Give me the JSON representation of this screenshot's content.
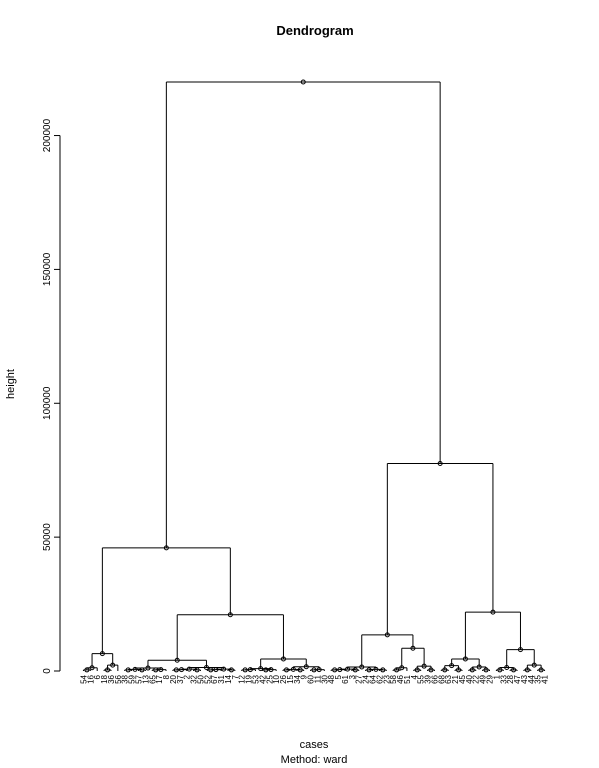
{
  "chart_data": {
    "type": "dendrogram",
    "title": "Dendrogram",
    "xlabel": "cases",
    "sublabel": "Method:  ward",
    "ylabel": "height",
    "ylim": [
      0,
      222000
    ],
    "yticks": [
      0,
      50000,
      100000,
      150000,
      200000
    ],
    "ytick_labels": [
      "0",
      "50000",
      "100000",
      "150000",
      "200000"
    ],
    "leaves": [
      "54",
      "16",
      "6",
      "18",
      "36",
      "56",
      "38",
      "59",
      "57",
      "13",
      "65",
      "17",
      "8",
      "20",
      "37",
      "2",
      "32",
      "50",
      "52",
      "67",
      "31",
      "14",
      "7",
      "12",
      "19",
      "53",
      "42",
      "25",
      "10",
      "26",
      "15",
      "34",
      "9",
      "60",
      "11",
      "30",
      "48",
      "5",
      "61",
      "3",
      "27",
      "24",
      "64",
      "62",
      "23",
      "58",
      "46",
      "51",
      "4",
      "55",
      "39",
      "66",
      "68",
      "63",
      "21",
      "45",
      "40",
      "22",
      "49",
      "29",
      "1",
      "33",
      "28",
      "47",
      "43",
      "44",
      "35",
      "41"
    ],
    "merges": [
      [
        1,
        2,
        500
      ],
      [
        3,
        4,
        800
      ],
      [
        5,
        6,
        200
      ],
      [
        7,
        8,
        400
      ],
      [
        10,
        11,
        300
      ],
      [
        14,
        15,
        500
      ],
      [
        16,
        17,
        400
      ],
      [
        18,
        19,
        300
      ],
      [
        20,
        21,
        300
      ],
      [
        22,
        23,
        500
      ],
      [
        24,
        25,
        400
      ],
      [
        26,
        27,
        500
      ],
      [
        28,
        29,
        300
      ],
      [
        30,
        31,
        400
      ],
      [
        32,
        33,
        500
      ],
      [
        34,
        35,
        400
      ],
      [
        36,
        37,
        300
      ],
      [
        39,
        40,
        400
      ],
      [
        41,
        42,
        500
      ],
      [
        43,
        44,
        300
      ],
      [
        46,
        47,
        400
      ],
      [
        49,
        50,
        500
      ],
      [
        51,
        52,
        400
      ],
      [
        53,
        54,
        300
      ],
      [
        55,
        56,
        400
      ],
      [
        58,
        59,
        500
      ],
      [
        60,
        61,
        300
      ],
      [
        62,
        63,
        400
      ],
      [
        64,
        65,
        500
      ],
      [
        66,
        67,
        300
      ],
      [
        -1,
        68,
        1200
      ],
      [
        -3,
        70,
        2200
      ],
      [
        -5,
        71,
        400
      ],
      [
        -9,
        73,
        600
      ],
      [
        -12,
        74,
        700
      ],
      [
        -13,
        75,
        800
      ],
      [
        -38,
        86,
        1000
      ],
      [
        -45,
        89,
        1000
      ],
      [
        -48,
        90,
        800
      ],
      [
        69,
        72,
        6500
      ],
      [
        76,
        77,
        900
      ],
      [
        78,
        79,
        700
      ],
      [
        80,
        81,
        1100
      ],
      [
        82,
        83,
        900
      ],
      [
        84,
        85,
        1300
      ],
      [
        87,
        88,
        1500
      ],
      [
        91,
        92,
        1200
      ],
      [
        93,
        94,
        800
      ],
      [
        95,
        96,
        900
      ],
      [
        97,
        98,
        700
      ],
      [
        99,
        100,
        900
      ],
      [
        101,
        102,
        1300
      ],
      [
        103,
        104,
        3800
      ],
      [
        105,
        106,
        4000
      ],
      [
        107,
        108,
        1200
      ],
      [
        109,
        110,
        1800
      ],
      [
        111,
        112,
        2000
      ],
      [
        113,
        114,
        1600
      ],
      [
        115,
        116,
        2200
      ],
      [
        117,
        118,
        1500
      ],
      [
        119,
        120,
        4500
      ],
      [
        121,
        122,
        8500
      ],
      [
        123,
        124,
        13500
      ],
      [
        125,
        126,
        21000
      ],
      [
        127,
        128,
        8000
      ],
      [
        129,
        130,
        22000
      ],
      [
        131,
        132,
        46000
      ],
      [
        133,
        134,
        77500
      ],
      [
        135,
        136,
        220000
      ]
    ]
  }
}
